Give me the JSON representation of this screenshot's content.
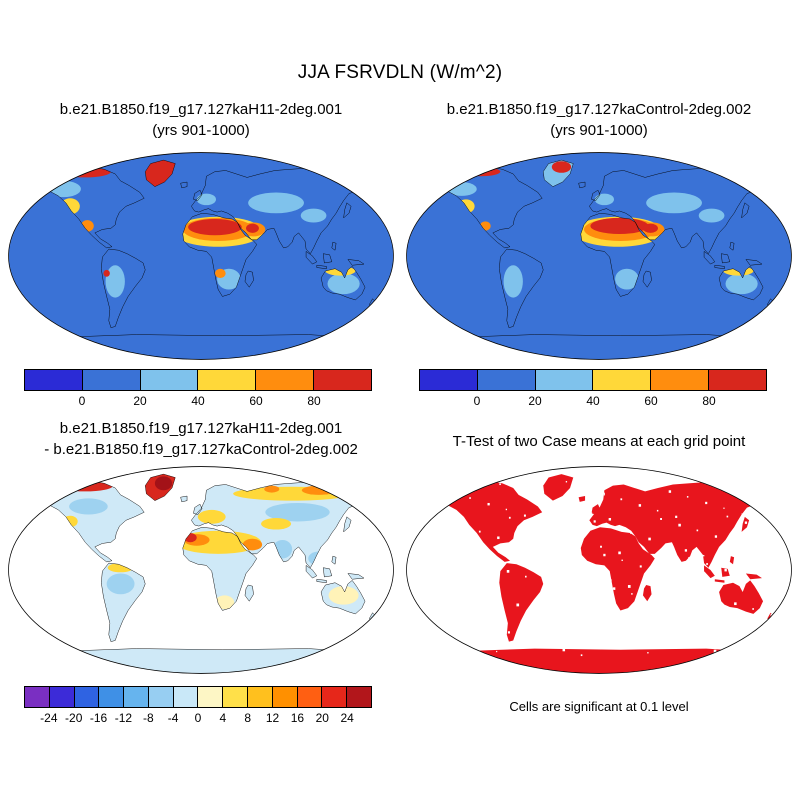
{
  "header": {
    "title": "JJA FSRVDLN (W/m^2)"
  },
  "panels": {
    "top_left": {
      "title": "b.e21.B1850.f19_g17.127kaH11-2deg.001",
      "subtitle": "(yrs 901-1000)"
    },
    "top_right": {
      "title": "b.e21.B1850.f19_g17.127kaControl-2deg.002",
      "subtitle": "(yrs 901-1000)"
    },
    "bottom_left": {
      "title": "b.e21.B1850.f19_g17.127kaH11-2deg.001",
      "subtitle": "- b.e21.B1850.f19_g17.127kaControl-2deg.002"
    },
    "bottom_right": {
      "title": "T-Test of two Case means at each grid point",
      "caption": "Cells are significant at 0.1 level"
    }
  },
  "palette": {
    "ocean_blue": "#3a72d6",
    "dark_blue": "#2b2bd6",
    "light_blue": "#7fc2ec",
    "pale_blue": "#cfe9f7",
    "sky_blue2": "#9ed2f0",
    "yellow": "#ffd839",
    "pale_yellow": "#fff3b8",
    "orange": "#ff8d0e",
    "red": "#d8271d",
    "dark_red": "#a31218",
    "ttest_red": "#e8151d",
    "white": "#ffffff"
  },
  "chart_data": [
    {
      "type": "heatmap",
      "subtype": "global_map",
      "panel": "top-left",
      "projection": "robinson",
      "variable": "FSRVDLN",
      "season": "JJA",
      "units": "W/m^2",
      "title": "b.e21.B1850.f19_g17.127kaH11-2deg.001",
      "subtitle": "(yrs 901-1000)",
      "colorbar": {
        "levels": [
          0,
          20,
          40,
          60,
          80
        ],
        "colors": [
          "#2b2bd6",
          "#3a72d6",
          "#7fc2ec",
          "#ffd839",
          "#ff8d0e",
          "#d8271d"
        ]
      },
      "description": "Oceans and most mid/high-latitude land in 0-20 range (blue); light-blue 20-40 patches over central Asia, southern Africa, Australia, Andes; 40-80+ (yellow/orange/red) over Sahara, Sahel, Arabia, SW North America; >80 (red) over Greenland, Arctic Canada and central Sahara."
    },
    {
      "type": "heatmap",
      "subtype": "global_map",
      "panel": "top-right",
      "projection": "robinson",
      "variable": "FSRVDLN",
      "season": "JJA",
      "units": "W/m^2",
      "title": "b.e21.B1850.f19_g17.127kaControl-2deg.002",
      "subtitle": "(yrs 901-1000)",
      "colorbar": {
        "levels": [
          0,
          20,
          40,
          60,
          80
        ],
        "colors": [
          "#2b2bd6",
          "#3a72d6",
          "#7fc2ec",
          "#ffd839",
          "#ff8d0e",
          "#d8271d"
        ]
      },
      "description": "Similar pattern to H11 case: blue oceans, red/orange Sahara and Arabia shifted slightly east, yellow SW North America, light-blue patches over central Asia, Australia and southern continents."
    },
    {
      "type": "heatmap",
      "subtype": "global_map_difference",
      "panel": "bottom-left",
      "projection": "robinson",
      "units": "W/m^2",
      "title": "b.e21.B1850.f19_g17.127kaH11-2deg.001",
      "subtitle": "- b.e21.B1850.f19_g17.127kaControl-2deg.002",
      "colorbar": {
        "levels": [
          -24,
          -20,
          -16,
          -12,
          -8,
          -4,
          0,
          4,
          8,
          12,
          16,
          20,
          24
        ],
        "colors": [
          "#7a2fc2",
          "#3c2bd8",
          "#2f63e2",
          "#3f90e6",
          "#66b4ee",
          "#97cef2",
          "#c9e8f8",
          "#fdf6c5",
          "#ffe049",
          "#ffc01e",
          "#ff9000",
          "#ff5f12",
          "#e6271a",
          "#b2161b"
        ]
      },
      "description": "Most land near zero to weakly negative (pale/light blue); strong positive (yellow/orange/red) over the Arctic, Greenland, northern Eurasia, Europe, western Sahara margin and Arabia; weak negatives over India, SE Asia and parts of the tropics; pale yellow over Australia and southern Africa."
    },
    {
      "type": "heatmap",
      "subtype": "significance_mask",
      "panel": "bottom-right",
      "projection": "robinson",
      "title": "T-Test of two Case means at each grid point",
      "caption": "Cells are significant at 0.1 level",
      "significant_color": "#e8151d",
      "description": "Nearly all land grid cells significant at the 0.1 level (solid red continents) with scattered non-significant white cells."
    }
  ]
}
